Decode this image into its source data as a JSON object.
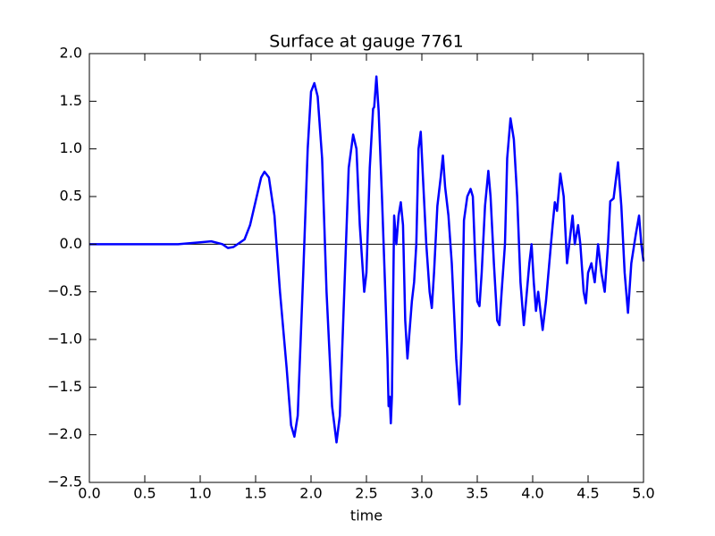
{
  "chart_data": {
    "type": "line",
    "title": "Surface at gauge 7761",
    "xlabel": "time",
    "xlim": [
      0,
      5
    ],
    "ylim": [
      -2.5,
      2
    ],
    "xticks": [
      {
        "value": 0,
        "label": "0.0"
      },
      {
        "value": 0.5,
        "label": "0.5"
      },
      {
        "value": 1,
        "label": "1.0"
      },
      {
        "value": 1.5,
        "label": "1.5"
      },
      {
        "value": 2,
        "label": "2.0"
      },
      {
        "value": 2.5,
        "label": "2.5"
      },
      {
        "value": 3,
        "label": "3.0"
      },
      {
        "value": 3.5,
        "label": "3.5"
      },
      {
        "value": 4,
        "label": "4.0"
      },
      {
        "value": 4.5,
        "label": "4.5"
      },
      {
        "value": 5,
        "label": "5.0"
      }
    ],
    "yticks": [
      {
        "value": -2.5,
        "label": "−2.5"
      },
      {
        "value": -2,
        "label": "−2.0"
      },
      {
        "value": -1.5,
        "label": "−1.5"
      },
      {
        "value": -1,
        "label": "−1.0"
      },
      {
        "value": -0.5,
        "label": "−0.5"
      },
      {
        "value": 0,
        "label": "0.0"
      },
      {
        "value": 0.5,
        "label": "0.5"
      },
      {
        "value": 1,
        "label": "1.0"
      },
      {
        "value": 1.5,
        "label": "1.5"
      },
      {
        "value": 2,
        "label": "2.0"
      }
    ],
    "axhline": 0,
    "axhline_color": "#000000",
    "grid": false,
    "series": [
      {
        "color": "#0000ff",
        "x": [
          0,
          0.8,
          1.0,
          1.1,
          1.2,
          1.25,
          1.3,
          1.4,
          1.45,
          1.5,
          1.55,
          1.58,
          1.62,
          1.67,
          1.72,
          1.78,
          1.82,
          1.85,
          1.88,
          1.93,
          1.97,
          2.0,
          2.03,
          2.06,
          2.1,
          2.14,
          2.19,
          2.23,
          2.26,
          2.3,
          2.34,
          2.38,
          2.41,
          2.44,
          2.48,
          2.5,
          2.53,
          2.56,
          2.57,
          2.59,
          2.61,
          2.64,
          2.67,
          2.69,
          2.7,
          2.71,
          2.72,
          2.73,
          2.75,
          2.77,
          2.79,
          2.81,
          2.83,
          2.85,
          2.87,
          2.89,
          2.91,
          2.93,
          2.95,
          2.97,
          2.99,
          3.01,
          3.04,
          3.07,
          3.09,
          3.11,
          3.14,
          3.17,
          3.19,
          3.21,
          3.24,
          3.27,
          3.29,
          3.31,
          3.34,
          3.36,
          3.38,
          3.41,
          3.44,
          3.46,
          3.48,
          3.5,
          3.52,
          3.54,
          3.57,
          3.6,
          3.62,
          3.65,
          3.68,
          3.7,
          3.72,
          3.75,
          3.77,
          3.8,
          3.83,
          3.86,
          3.89,
          3.92,
          3.94,
          3.97,
          3.99,
          4.01,
          4.03,
          4.05,
          4.07,
          4.09,
          4.12,
          4.15,
          4.18,
          4.2,
          4.22,
          4.25,
          4.28,
          4.31,
          4.33,
          4.36,
          4.38,
          4.41,
          4.43,
          4.46,
          4.48,
          4.5,
          4.53,
          4.56,
          4.59,
          4.62,
          4.65,
          4.68,
          4.7,
          4.73,
          4.77,
          4.8,
          4.83,
          4.86,
          4.89,
          4.93,
          4.96,
          4.98,
          5.0
        ],
        "values": [
          0,
          0.0,
          0.02,
          0.03,
          0.0,
          -0.04,
          -0.03,
          0.05,
          0.2,
          0.45,
          0.7,
          0.76,
          0.7,
          0.3,
          -0.5,
          -1.3,
          -1.9,
          -2.02,
          -1.8,
          -0.3,
          1.0,
          1.6,
          1.69,
          1.55,
          0.9,
          -0.5,
          -1.7,
          -2.08,
          -1.8,
          -0.5,
          0.8,
          1.15,
          1.0,
          0.2,
          -0.5,
          -0.3,
          0.8,
          1.42,
          1.44,
          1.76,
          1.4,
          0.5,
          -0.5,
          -1.2,
          -1.7,
          -1.6,
          -1.88,
          -1.6,
          0.3,
          0.0,
          0.3,
          0.44,
          0.2,
          -0.8,
          -1.2,
          -0.9,
          -0.6,
          -0.4,
          0.0,
          1.0,
          1.18,
          0.7,
          0.0,
          -0.5,
          -0.67,
          -0.3,
          0.4,
          0.7,
          0.93,
          0.6,
          0.3,
          -0.2,
          -0.7,
          -1.2,
          -1.68,
          -1.0,
          0.25,
          0.5,
          0.58,
          0.5,
          -0.1,
          -0.6,
          -0.65,
          -0.3,
          0.4,
          0.77,
          0.5,
          -0.2,
          -0.8,
          -0.85,
          -0.5,
          0.0,
          0.9,
          1.32,
          1.1,
          0.5,
          -0.4,
          -0.85,
          -0.6,
          -0.2,
          0.0,
          -0.4,
          -0.7,
          -0.5,
          -0.7,
          -0.9,
          -0.6,
          -0.2,
          0.2,
          0.44,
          0.35,
          0.74,
          0.5,
          -0.2,
          0.0,
          0.3,
          0.0,
          0.2,
          0.0,
          -0.5,
          -0.62,
          -0.3,
          -0.2,
          -0.4,
          0.0,
          -0.3,
          -0.5,
          0.0,
          0.45,
          0.48,
          0.86,
          0.4,
          -0.3,
          -0.72,
          -0.2,
          0.1,
          0.3,
          0.0,
          -0.18
        ]
      }
    ]
  }
}
